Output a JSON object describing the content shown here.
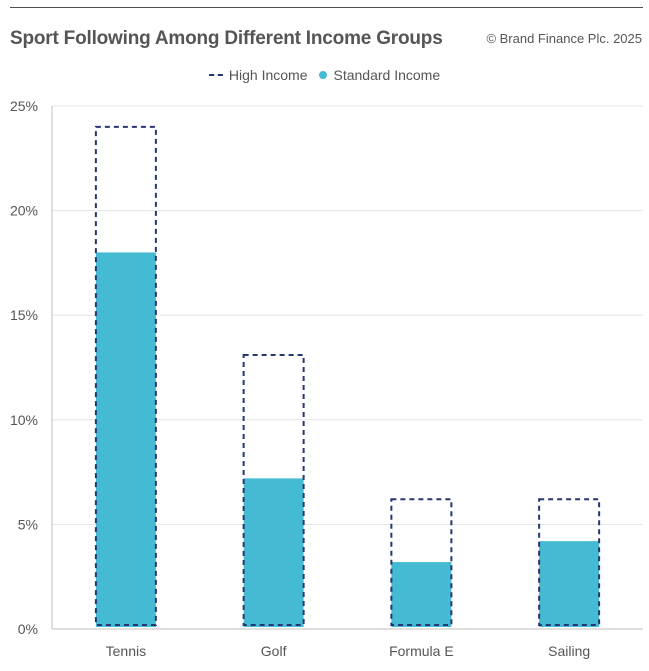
{
  "header": {
    "title": "Sport Following Among Different Income Groups",
    "copyright": "© Brand Finance Plc. 2025"
  },
  "colors": {
    "high_income": "#253672",
    "standard_income": "#44bad3",
    "grid": "#e6e6e6",
    "axis": "#bfbfbf"
  },
  "chart_data": {
    "type": "bar",
    "title": "Sport Following Among Different Income Groups",
    "categories": [
      "Tennis",
      "Golf",
      "Formula E",
      "Sailing"
    ],
    "series": [
      {
        "name": "High Income",
        "style": "dashed-outline",
        "values": [
          24,
          13.1,
          6.2,
          6.2
        ]
      },
      {
        "name": "Standard Income",
        "style": "filled",
        "values": [
          18,
          7.2,
          3.2,
          4.2
        ]
      }
    ],
    "ylim": [
      0,
      25
    ],
    "yticks": [
      "0%",
      "5%",
      "10%",
      "15%",
      "20%",
      "25%"
    ],
    "xlabel": "",
    "ylabel": "",
    "grid": true,
    "legend_position": "top-center"
  }
}
